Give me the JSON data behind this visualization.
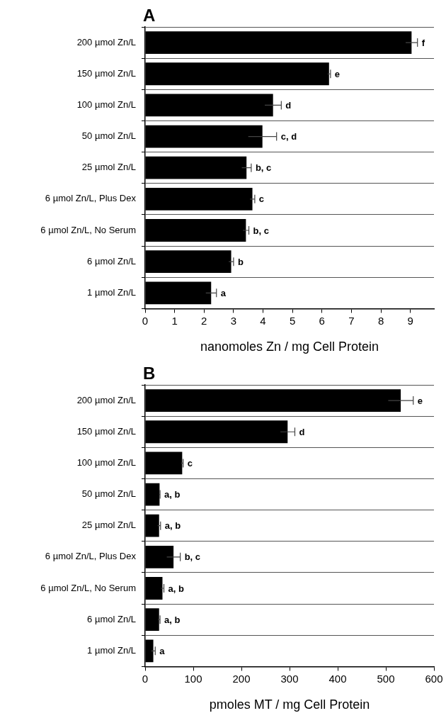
{
  "chart_data": [
    {
      "type": "bar",
      "title": "A",
      "orientation": "horizontal",
      "xlabel": "nanomoles Zn / mg Cell Protein",
      "categories": [
        "200 µmol Zn/L",
        "150 µmol Zn/L",
        "100 µmol Zn/L",
        "50 µmol Zn/L",
        "25 µmol Zn/L",
        "6 µmol Zn/L, Plus Dex",
        "6 µmol Zn/L, No Serum",
        "6 µmol Zn/L",
        "1 µmol Zn/L"
      ],
      "values": [
        9.04,
        6.24,
        4.34,
        3.98,
        3.44,
        3.64,
        3.42,
        2.92,
        2.24
      ],
      "errors": [
        0.2,
        0.05,
        0.28,
        0.48,
        0.16,
        0.08,
        0.1,
        0.08,
        0.18
      ],
      "color": "#000000",
      "xlim": [
        0,
        9.8
      ],
      "xticks": [
        0,
        1,
        2,
        3,
        4,
        5,
        6,
        7,
        8,
        9
      ],
      "grid": "y",
      "annotations": [
        {
          "text": "f",
          "x": 9.24,
          "y": "200 µmol Zn/L"
        },
        {
          "text": "e",
          "x": 6.29,
          "y": "150 µmol Zn/L"
        },
        {
          "text": "d",
          "x": 4.62,
          "y": "100 µmol Zn/L"
        },
        {
          "text": "c, d",
          "x": 4.46,
          "y": "50 µmol Zn/L"
        },
        {
          "text": "b, c",
          "x": 3.6,
          "y": "25 µmol Zn/L"
        },
        {
          "text": "c",
          "x": 3.72,
          "y": "6 µmol Zn/L, Plus Dex"
        },
        {
          "text": "b, c",
          "x": 3.52,
          "y": "6 µmol Zn/L, No Serum"
        },
        {
          "text": "b",
          "x": 3.0,
          "y": "6 µmol Zn/L"
        },
        {
          "text": "a",
          "x": 2.42,
          "y": "1 µmol Zn/L"
        }
      ]
    },
    {
      "type": "bar",
      "title": "B",
      "orientation": "horizontal",
      "xlabel": "pmoles MT / mg Cell Protein",
      "categories": [
        "200 µmol Zn/L",
        "150 µmol Zn/L",
        "100 µmol Zn/L",
        "50 µmol Zn/L",
        "25 µmol Zn/L",
        "6 µmol Zn/L, Plus Dex",
        "6 µmol Zn/L, No Serum",
        "6 µmol Zn/L",
        "1 µmol Zn/L"
      ],
      "values": [
        531,
        296,
        77,
        30,
        29,
        59,
        36,
        29,
        17
      ],
      "errors": [
        26,
        15,
        2,
        1,
        3,
        14,
        3,
        2,
        4
      ],
      "color": "#000000",
      "xlim": [
        0,
        600
      ],
      "xticks": [
        0,
        100,
        200,
        300,
        400,
        500,
        600
      ],
      "grid": "y",
      "annotations": [
        {
          "text": "e",
          "x": 557,
          "y": "200 µmol Zn/L"
        },
        {
          "text": "d",
          "x": 311,
          "y": "150 µmol Zn/L"
        },
        {
          "text": "c",
          "x": 79,
          "y": "100 µmol Zn/L"
        },
        {
          "text": "a, b",
          "x": 31,
          "y": "50 µmol Zn/L"
        },
        {
          "text": "a, b",
          "x": 32,
          "y": "25 µmol Zn/L"
        },
        {
          "text": "b, c",
          "x": 73,
          "y": "6 µmol Zn/L, Plus Dex"
        },
        {
          "text": "a, b",
          "x": 39,
          "y": "6 µmol Zn/L, No Serum"
        },
        {
          "text": "a, b",
          "x": 31,
          "y": "6 µmol Zn/L"
        },
        {
          "text": "a",
          "x": 21,
          "y": "1 µmol Zn/L"
        }
      ]
    }
  ]
}
